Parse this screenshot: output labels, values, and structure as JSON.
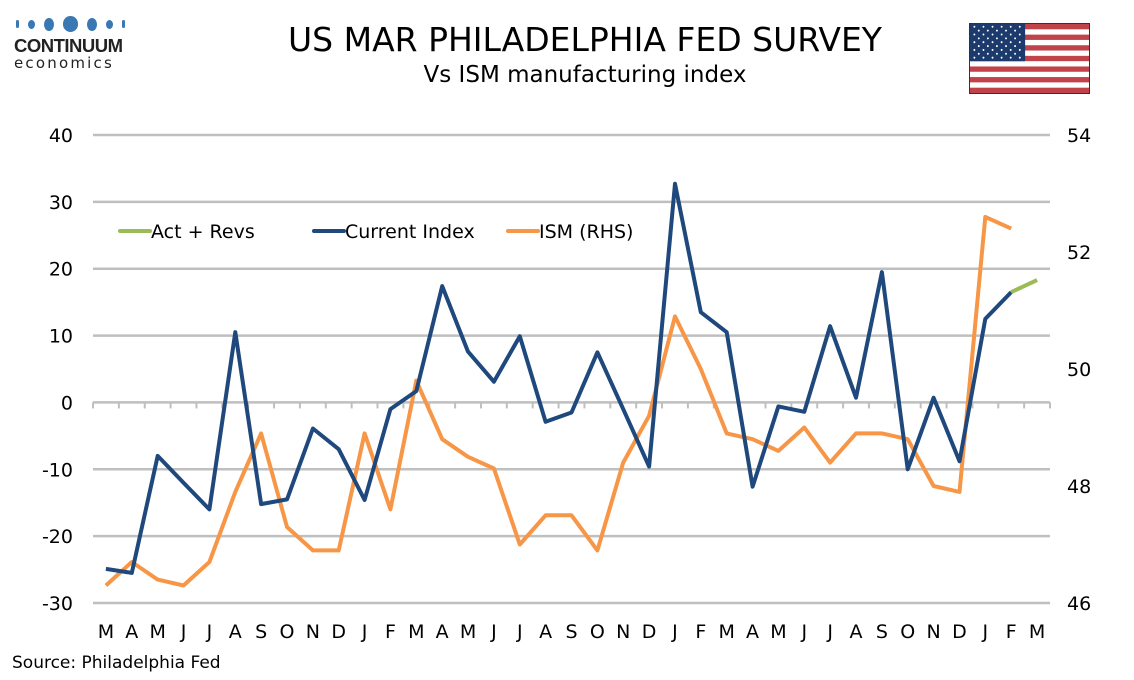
{
  "logo": {
    "word1": "CONTINUUM",
    "word2": "economics",
    "icon": "dots-logo-icon"
  },
  "flag": {
    "icon": "us-flag-icon"
  },
  "source": "Source: Philadelphia Fed",
  "colors": {
    "act_revs": "#9bbb59",
    "current_index": "#1f497d",
    "ism": "#f79646",
    "grid": "#bfbfbf"
  },
  "chart_data": {
    "type": "line",
    "title": "US MAR PHILADELPHIA FED SURVEY",
    "subtitle": "Vs ISM manufacturing index",
    "xlabel": "",
    "ylabel": "",
    "x": [
      "M",
      "A",
      "M",
      "J",
      "J",
      "A",
      "S",
      "O",
      "N",
      "D",
      "J",
      "F",
      "M",
      "A",
      "M",
      "J",
      "J",
      "A",
      "S",
      "O",
      "N",
      "D",
      "J",
      "F",
      "M",
      "A",
      "M",
      "J",
      "J",
      "A",
      "S",
      "O",
      "N",
      "D",
      "J",
      "F",
      "M"
    ],
    "y_left": {
      "ylim": [
        -30,
        40
      ],
      "ticks": [
        -30,
        -20,
        -10,
        0,
        10,
        20,
        30,
        40
      ]
    },
    "y_right": {
      "ylim": [
        46,
        54
      ],
      "ticks": [
        46,
        48,
        50,
        52,
        54
      ]
    },
    "grid": true,
    "legend_position": "top-left",
    "series": [
      {
        "name": "Act + Revs",
        "axis": "left",
        "values": [
          null,
          null,
          null,
          null,
          null,
          null,
          null,
          null,
          null,
          null,
          null,
          null,
          null,
          null,
          null,
          null,
          null,
          null,
          null,
          null,
          null,
          null,
          null,
          null,
          null,
          null,
          null,
          null,
          null,
          null,
          null,
          null,
          null,
          null,
          null,
          16.5,
          18.3
        ]
      },
      {
        "name": "Current Index",
        "axis": "left",
        "values": [
          -24.9,
          -25.5,
          -8.0,
          -12.0,
          -16.0,
          10.5,
          -15.2,
          -14.5,
          -3.9,
          -7.0,
          -14.6,
          -1.0,
          1.7,
          17.4,
          7.6,
          3.1,
          9.9,
          -2.9,
          -1.5,
          7.5,
          -1.0,
          -9.6,
          32.7,
          13.5,
          10.5,
          -12.6,
          -0.6,
          -1.4,
          11.4,
          0.7,
          19.5,
          -10.0,
          0.7,
          -8.8,
          12.5,
          16.5,
          null
        ]
      },
      {
        "name": "ISM (RHS)",
        "axis": "right",
        "values": [
          46.3,
          46.7,
          46.4,
          46.3,
          46.7,
          47.9,
          48.9,
          47.3,
          46.9,
          46.9,
          48.9,
          47.6,
          49.8,
          48.8,
          48.5,
          48.3,
          47.0,
          47.5,
          47.5,
          46.9,
          48.4,
          49.2,
          50.9,
          50.0,
          48.9,
          48.8,
          48.6,
          49.0,
          48.4,
          48.9,
          48.9,
          48.8,
          48.0,
          47.9,
          52.6,
          52.4,
          null
        ]
      }
    ]
  }
}
